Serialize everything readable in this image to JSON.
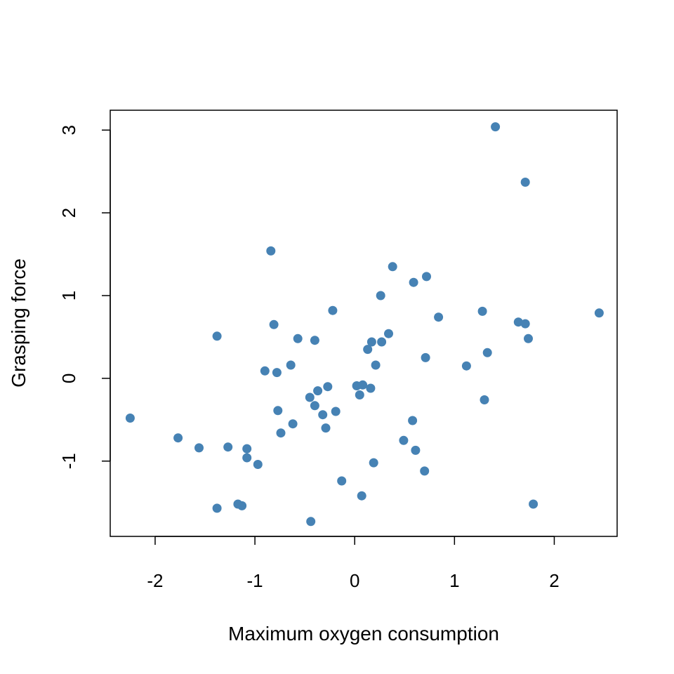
{
  "chart_data": {
    "type": "scatter",
    "title": "",
    "xlabel": "Maximum oxygen consumption",
    "ylabel": "Grasping force",
    "xlim": [
      -2.45,
      2.63
    ],
    "ylim": [
      -1.91,
      3.24
    ],
    "x_ticks": [
      -2,
      -1,
      0,
      1,
      2
    ],
    "y_ticks": [
      -1,
      0,
      1,
      2,
      3
    ],
    "x_tick_labels": [
      "-2",
      "-1",
      "0",
      "1",
      "2"
    ],
    "y_tick_labels": [
      "-1",
      "0",
      "1",
      "2",
      "3"
    ],
    "grid": false,
    "point_color": "#4682B4",
    "points": [
      {
        "x": -2.25,
        "y": -0.48
      },
      {
        "x": -1.77,
        "y": -0.72
      },
      {
        "x": -1.56,
        "y": -0.84
      },
      {
        "x": -1.38,
        "y": 0.51
      },
      {
        "x": -1.38,
        "y": -1.57
      },
      {
        "x": -1.27,
        "y": -0.83
      },
      {
        "x": -1.17,
        "y": -1.52
      },
      {
        "x": -1.13,
        "y": -1.54
      },
      {
        "x": -1.08,
        "y": -0.85
      },
      {
        "x": -1.08,
        "y": -0.96
      },
      {
        "x": -0.97,
        "y": -1.04
      },
      {
        "x": -0.9,
        "y": 0.09
      },
      {
        "x": -0.84,
        "y": 1.54
      },
      {
        "x": -0.81,
        "y": 0.65
      },
      {
        "x": -0.78,
        "y": 0.07
      },
      {
        "x": -0.77,
        "y": -0.39
      },
      {
        "x": -0.74,
        "y": -0.66
      },
      {
        "x": -0.64,
        "y": 0.16
      },
      {
        "x": -0.62,
        "y": -0.55
      },
      {
        "x": -0.57,
        "y": 0.48
      },
      {
        "x": -0.45,
        "y": -0.23
      },
      {
        "x": -0.44,
        "y": -1.73
      },
      {
        "x": -0.4,
        "y": -0.33
      },
      {
        "x": -0.4,
        "y": 0.46
      },
      {
        "x": -0.37,
        "y": -0.15
      },
      {
        "x": -0.32,
        "y": -0.44
      },
      {
        "x": -0.29,
        "y": -0.6
      },
      {
        "x": -0.27,
        "y": -0.1
      },
      {
        "x": -0.22,
        "y": 0.82
      },
      {
        "x": -0.19,
        "y": -0.4
      },
      {
        "x": -0.13,
        "y": -1.24
      },
      {
        "x": 0.02,
        "y": -0.09
      },
      {
        "x": 0.05,
        "y": -0.2
      },
      {
        "x": 0.07,
        "y": -1.42
      },
      {
        "x": 0.08,
        "y": -0.08
      },
      {
        "x": 0.13,
        "y": 0.35
      },
      {
        "x": 0.16,
        "y": -0.12
      },
      {
        "x": 0.17,
        "y": 0.44
      },
      {
        "x": 0.19,
        "y": -1.02
      },
      {
        "x": 0.21,
        "y": 0.16
      },
      {
        "x": 0.26,
        "y": 1.0
      },
      {
        "x": 0.27,
        "y": 0.44
      },
      {
        "x": 0.34,
        "y": 0.54
      },
      {
        "x": 0.38,
        "y": 1.35
      },
      {
        "x": 0.49,
        "y": -0.75
      },
      {
        "x": 0.58,
        "y": -0.51
      },
      {
        "x": 0.59,
        "y": 1.16
      },
      {
        "x": 0.61,
        "y": -0.87
      },
      {
        "x": 0.7,
        "y": -1.12
      },
      {
        "x": 0.71,
        "y": 0.25
      },
      {
        "x": 0.72,
        "y": 1.23
      },
      {
        "x": 0.84,
        "y": 0.74
      },
      {
        "x": 1.12,
        "y": 0.15
      },
      {
        "x": 1.28,
        "y": 0.81
      },
      {
        "x": 1.3,
        "y": -0.26
      },
      {
        "x": 1.33,
        "y": 0.31
      },
      {
        "x": 1.41,
        "y": 3.04
      },
      {
        "x": 1.64,
        "y": 0.68
      },
      {
        "x": 1.71,
        "y": 2.37
      },
      {
        "x": 1.71,
        "y": 0.66
      },
      {
        "x": 1.74,
        "y": 0.48
      },
      {
        "x": 1.79,
        "y": -1.52
      },
      {
        "x": 2.45,
        "y": 0.79
      }
    ]
  }
}
